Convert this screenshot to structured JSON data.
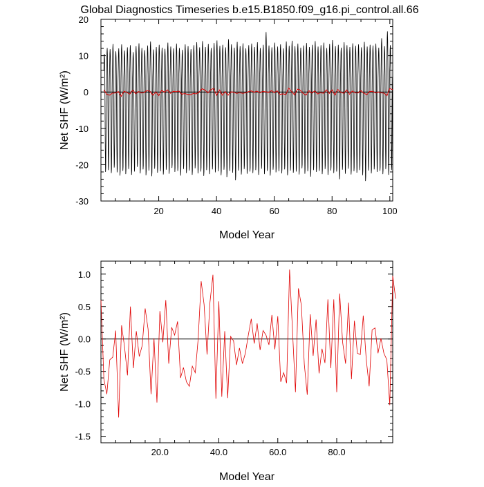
{
  "title": "Global Diagnostics Timeseries b.e15.B1850.f09_g16.pi_control.all.66",
  "chart_data": [
    {
      "type": "line",
      "title": "Global Diagnostics Timeseries b.e15.B1850.f09_g16.pi_control.all.66",
      "xlabel": "Model Year",
      "ylabel": "Net SHF (W/m²)",
      "xlim": [
        0,
        101
      ],
      "ylim": [
        -30,
        20
      ],
      "x_ticks": [
        "20",
        "40",
        "60",
        "80",
        "100"
      ],
      "y_ticks": [
        "20",
        "10",
        "0",
        "-10",
        "-20",
        "-30"
      ],
      "reference_line_y": 0,
      "series": [
        {
          "color": "#000000",
          "resolution": "monthly",
          "description_of_values": "seasonal cycle, annual maxima ~8 to 16.5, annual minima ~-19 to -24.5",
          "annual_max": [
            10.5,
            12.1,
            11.8,
            13.2,
            11.2,
            12.0,
            13.1,
            11.4,
            12.3,
            12.9,
            11.0,
            12.6,
            13.4,
            12.1,
            11.5,
            12.8,
            13.9,
            11.7,
            12.4,
            13.0,
            12.2,
            11.9,
            13.6,
            12.5,
            12.0,
            13.3,
            12.1,
            11.6,
            13.1,
            12.6,
            11.8,
            12.9,
            13.7,
            12.3,
            14.0,
            12.4,
            13.2,
            12.1,
            13.5,
            14.2,
            12.7,
            13.0,
            12.3,
            14.5,
            13.1,
            12.2,
            13.8,
            12.6,
            13.4,
            12.0,
            12.9,
            13.3,
            12.4,
            13.7,
            12.1,
            13.0,
            16.5,
            12.8,
            12.3,
            13.6,
            12.5,
            13.1,
            12.0,
            13.9,
            12.7,
            14.1,
            12.6,
            13.3,
            12.2,
            12.8,
            13.5,
            12.4,
            13.0,
            14.0,
            12.5,
            12.9,
            13.6,
            12.1,
            13.2,
            14.3,
            12.6,
            13.0,
            12.2,
            13.7,
            12.9,
            12.4,
            13.4,
            12.7,
            13.1,
            12.3,
            13.8,
            12.5,
            13.0,
            12.8,
            13.3,
            12.2,
            14.8,
            12.6,
            16.7,
            12.9
          ],
          "annual_min": [
            -22.0,
            -21.5,
            -22.3,
            -20.8,
            -22.1,
            -23.0,
            -21.7,
            -22.6,
            -21.2,
            -22.8,
            -21.9,
            -20.6,
            -22.4,
            -21.3,
            -22.9,
            -21.6,
            -23.2,
            -21.1,
            -22.2,
            -21.8,
            -22.7,
            -21.4,
            -22.5,
            -20.9,
            -22.0,
            -21.7,
            -23.0,
            -21.2,
            -22.3,
            -21.6,
            -22.8,
            -21.0,
            -22.4,
            -21.9,
            -23.1,
            -21.5,
            -22.6,
            -21.3,
            -22.1,
            -21.8,
            -22.9,
            -21.4,
            -23.4,
            -21.7,
            -22.2,
            -24.3,
            -21.6,
            -22.7,
            -21.2,
            -22.5,
            -21.9,
            -22.3,
            -21.5,
            -22.8,
            -21.1,
            -22.6,
            -21.7,
            -23.0,
            -21.4,
            -22.1,
            -21.8,
            -22.4,
            -21.3,
            -22.9,
            -21.6,
            -22.2,
            -21.9,
            -22.7,
            -21.0,
            -22.5,
            -21.8,
            -23.3,
            -21.5,
            -22.0,
            -21.7,
            -22.6,
            -21.2,
            -22.8,
            -21.6,
            -22.3,
            -21.9,
            -24.0,
            -21.4,
            -22.5,
            -21.1,
            -22.7,
            -21.8,
            -22.2,
            -21.5,
            -22.9,
            -24.5,
            -21.6,
            -22.4,
            -21.3,
            -22.0,
            -21.7,
            -22.6,
            -21.2,
            -22.8,
            -21.5
          ]
        },
        {
          "color": "#e00000",
          "resolution": "annual",
          "same_as": "lower panel series"
        }
      ]
    },
    {
      "type": "line",
      "xlabel": "Model Year",
      "ylabel": "Net SHF (W/m²)",
      "xlim": [
        0,
        99
      ],
      "ylim": [
        -1.6,
        1.2
      ],
      "x_ticks": [
        "20.0",
        "40.0",
        "60.0",
        "80.0"
      ],
      "y_ticks": [
        "1.0",
        "0.5",
        "0.0",
        "-0.5",
        "-1.0",
        "-1.5"
      ],
      "reference_line_y": 0,
      "series": [
        {
          "color": "#e00000",
          "x_start": 1,
          "values": [
            0.6,
            -0.62,
            -0.85,
            -0.32,
            -0.28,
            0.13,
            -1.21,
            0.21,
            -0.12,
            -0.56,
            0.5,
            -0.45,
            0.12,
            -0.27,
            -0.1,
            0.47,
            0.15,
            -0.85,
            0.01,
            -0.98,
            0.43,
            -0.05,
            0.6,
            -0.38,
            0.18,
            0.06,
            0.27,
            -0.6,
            -0.44,
            -0.66,
            -0.73,
            -0.42,
            -0.52,
            0.01,
            0.89,
            0.53,
            -0.24,
            0.57,
            0.99,
            -0.92,
            0.58,
            -0.89,
            0.12,
            -0.91,
            0.04,
            -0.03,
            -0.4,
            -0.14,
            -0.38,
            -0.22,
            0.06,
            0.31,
            -0.07,
            0.24,
            -0.17,
            0.13,
            0.06,
            -0.09,
            0.37,
            -0.16,
            0.35,
            -0.66,
            -0.52,
            -0.68,
            1.07,
            0.12,
            -0.82,
            0.78,
            0.52,
            -0.39,
            -0.86,
            0.38,
            -0.26,
            0.3,
            -0.53,
            -0.15,
            -0.37,
            0.61,
            -0.45,
            0.61,
            -0.82,
            0.7,
            -0.05,
            -0.38,
            0.56,
            -0.62,
            0.28,
            -0.22,
            -0.24,
            0.36,
            -0.31,
            -0.73,
            0.14,
            0.17,
            -0.22,
            0.01,
            -0.22,
            -0.32,
            -1.02,
            0.97,
            0.62
          ]
        }
      ]
    }
  ]
}
